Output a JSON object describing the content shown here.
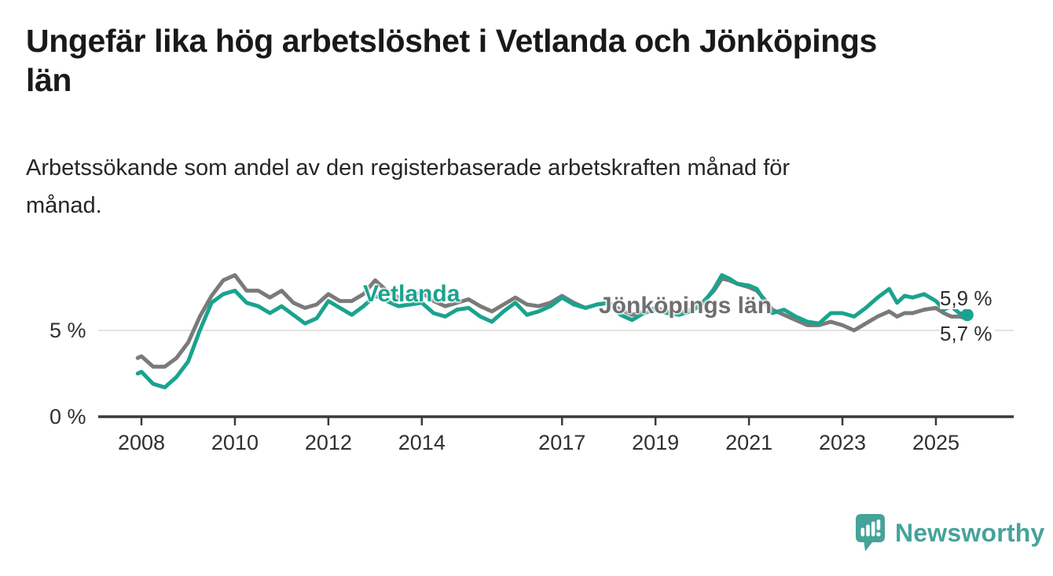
{
  "header": {
    "title_line1": "Ungefär lika hög arbetslöshet i Vetlanda och Jönköpings",
    "title_line2": "län",
    "subtitle_line1": "Arbetssökande som andel av den registerbaserade arbetskraften månad för",
    "subtitle_line2": "månad."
  },
  "chart_data": {
    "type": "line",
    "title": "Ungefär lika hög arbetslöshet i Vetlanda och Jönköpings län",
    "subtitle": "Arbetssökande som andel av den registerbaserade arbetskraften månad för månad.",
    "unit": "%",
    "x_unit": "decimal_year",
    "x": [
      2007.92,
      2008.0,
      2008.25,
      2008.5,
      2008.75,
      2009.0,
      2009.25,
      2009.5,
      2009.75,
      2010.0,
      2010.25,
      2010.5,
      2010.75,
      2011.0,
      2011.25,
      2011.5,
      2011.75,
      2012.0,
      2012.25,
      2012.5,
      2012.75,
      2013.0,
      2013.25,
      2013.5,
      2013.75,
      2014.0,
      2014.25,
      2014.5,
      2014.75,
      2015.0,
      2015.25,
      2015.5,
      2015.75,
      2016.0,
      2016.25,
      2016.5,
      2016.75,
      2017.0,
      2017.25,
      2017.5,
      2017.75,
      2018.0,
      2018.25,
      2018.5,
      2018.75,
      2019.0,
      2019.25,
      2019.5,
      2019.75,
      2020.0,
      2020.25,
      2020.42,
      2020.58,
      2020.75,
      2021.0,
      2021.17,
      2021.33,
      2021.5,
      2021.75,
      2022.0,
      2022.25,
      2022.5,
      2022.75,
      2023.0,
      2023.25,
      2023.5,
      2023.75,
      2024.0,
      2024.17,
      2024.33,
      2024.5,
      2024.75,
      2025.0,
      2025.17,
      2025.33,
      2025.5,
      2025.67
    ],
    "series": [
      {
        "name": "Vetlanda",
        "color": "#1aa38e",
        "end_value_label": "5,9 %",
        "values": [
          2.5,
          2.6,
          1.9,
          1.7,
          2.3,
          3.2,
          5.0,
          6.6,
          7.1,
          7.3,
          6.6,
          6.4,
          6.0,
          6.4,
          5.9,
          5.4,
          5.7,
          6.7,
          6.3,
          5.9,
          6.4,
          7.0,
          6.7,
          6.4,
          6.5,
          6.6,
          6.0,
          5.8,
          6.2,
          6.3,
          5.8,
          5.5,
          6.1,
          6.6,
          5.9,
          6.1,
          6.4,
          6.9,
          6.5,
          6.3,
          6.5,
          6.6,
          5.9,
          5.6,
          6.0,
          6.2,
          6.0,
          5.9,
          6.1,
          6.5,
          7.4,
          8.2,
          8.0,
          7.7,
          7.6,
          7.4,
          6.7,
          6.0,
          6.2,
          5.8,
          5.5,
          5.4,
          6.0,
          6.0,
          5.8,
          6.3,
          6.9,
          7.4,
          6.6,
          7.0,
          6.9,
          7.1,
          6.7,
          6.2,
          6.4,
          6.0,
          5.9
        ]
      },
      {
        "name": "Jönköpings län",
        "color": "#7a7a7a",
        "end_value_label": "5,7 %",
        "values": [
          3.4,
          3.5,
          2.9,
          2.9,
          3.4,
          4.3,
          5.8,
          7.0,
          7.9,
          8.2,
          7.3,
          7.3,
          6.9,
          7.3,
          6.6,
          6.3,
          6.5,
          7.1,
          6.7,
          6.7,
          7.1,
          7.9,
          7.3,
          6.9,
          7.0,
          7.2,
          6.7,
          6.4,
          6.6,
          6.8,
          6.4,
          6.1,
          6.5,
          6.9,
          6.5,
          6.4,
          6.6,
          7.0,
          6.6,
          6.3,
          6.5,
          6.6,
          6.2,
          5.9,
          6.1,
          6.3,
          6.1,
          6.0,
          6.2,
          6.6,
          7.3,
          8.0,
          7.9,
          7.7,
          7.5,
          7.3,
          6.8,
          6.2,
          5.9,
          5.6,
          5.3,
          5.3,
          5.5,
          5.3,
          5.0,
          5.4,
          5.8,
          6.1,
          5.8,
          6.0,
          6.0,
          6.2,
          6.3,
          6.0,
          5.8,
          5.8,
          5.7
        ]
      }
    ],
    "y_axis": {
      "ticks": [
        {
          "label": "0 %",
          "value": 0
        },
        {
          "label": "5 %",
          "value": 5
        }
      ],
      "gridline_value": 5
    },
    "x_axis": {
      "ticks": [
        2008,
        2010,
        2012,
        2014,
        2017,
        2019,
        2021,
        2023,
        2025
      ]
    },
    "ylim": [
      0,
      9.5
    ],
    "xlim": [
      2007.85,
      2025.75
    ],
    "grid": "horizontal-5-only",
    "legend_position": "inline-labels-on-lines"
  },
  "footer": {
    "brand": "Newsworthy"
  },
  "colors": {
    "vetlanda_line": "#1aa38e",
    "jonkoping_line": "#7a7a7a",
    "axis": "#3a3a3a",
    "gridline": "#d9d9d9",
    "title_text": "#191919",
    "brand_teal": "#45a39a"
  }
}
